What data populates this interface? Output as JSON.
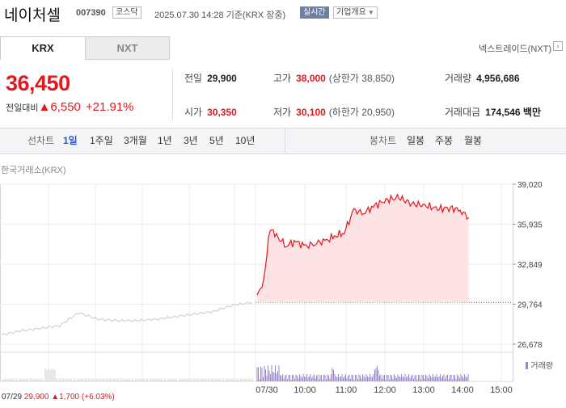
{
  "header": {
    "name": "네이처셀",
    "code": "007390",
    "market": "코스닥",
    "timestamp": "2025.07.30 14:28 기준(KRX 장중)",
    "realtime_label": "실시간",
    "company_info_label": "기업개요"
  },
  "exchange_tabs": [
    {
      "label": "KRX",
      "active": true
    },
    {
      "label": "NXT",
      "active": false
    }
  ],
  "nextrade_link": "넥스트레이드(NXT)",
  "quote": {
    "price": "36,450",
    "change_label": "전일대비",
    "change_arrow": "▲",
    "change": "6,550",
    "change_pct": "+21.91%"
  },
  "stats": {
    "prev_close": {
      "label": "전일",
      "value": "29,900"
    },
    "open": {
      "label": "시가",
      "value": "30,350"
    },
    "high": {
      "label": "고가",
      "value": "38,000",
      "sub_label": "(상한가",
      "sub_value": "38,850)"
    },
    "low": {
      "label": "저가",
      "value": "30,100",
      "sub_label": "(하한가",
      "sub_value": "20,950)"
    },
    "volume": {
      "label": "거래량",
      "value": "4,956,686"
    },
    "amount": {
      "label": "거래대금",
      "value": "174,546",
      "unit": "백만"
    }
  },
  "line_chart_label": "선차트",
  "line_periods": [
    "1일",
    "1주일",
    "3개월",
    "1년",
    "3년",
    "5년",
    "10년"
  ],
  "active_period": "1일",
  "candle_chart_label": "봉차트",
  "candle_periods": [
    "일봉",
    "주봉",
    "월봉"
  ],
  "chart_source": "한국거래소(KRX)",
  "volume_legend": "거래량",
  "prev_day_summary": {
    "date": "07/29",
    "price": "29,900",
    "arrow": "▲",
    "change": "1,700",
    "pct": "(+6.03%)"
  },
  "colors": {
    "up_red": "#e4181e",
    "area_fill": "#fde3e4",
    "prev_line": "#c9c9c9",
    "volume_bar": "#9a86c8",
    "active_blue": "#2d57c4"
  },
  "chart_data": {
    "type": "line",
    "y_ticks": [
      "39,020",
      "35,935",
      "32,849",
      "29,764",
      "26,678"
    ],
    "ylim": [
      26678,
      39020
    ],
    "x_ticks": [
      "07/29",
      "07/30",
      "10:00",
      "11:00",
      "12:00",
      "13:00",
      "14:00",
      "15:00"
    ],
    "baseline": 29900,
    "series": [
      {
        "name": "07/29",
        "x": [
          "09:00",
          "09:30",
          "10:00",
          "10:30",
          "11:00",
          "11:30",
          "12:00",
          "12:30",
          "13:00",
          "13:30",
          "14:00",
          "14:30",
          "15:00",
          "15:30"
        ],
        "values": [
          27400,
          27700,
          27900,
          28100,
          29100,
          28600,
          28500,
          28500,
          28600,
          28800,
          29000,
          29200,
          29700,
          29900
        ]
      },
      {
        "name": "07/30",
        "x": [
          "09:00",
          "09:10",
          "09:20",
          "09:30",
          "09:45",
          "10:00",
          "10:15",
          "10:30",
          "10:45",
          "11:00",
          "11:15",
          "11:30",
          "11:45",
          "12:00",
          "12:20",
          "12:40",
          "13:00",
          "13:20",
          "13:40",
          "14:00",
          "14:15",
          "14:28"
        ],
        "values": [
          30350,
          31600,
          35600,
          35000,
          34300,
          34600,
          34200,
          34500,
          34600,
          35000,
          35300,
          37000,
          36800,
          37300,
          37800,
          38000,
          37500,
          37400,
          37100,
          37200,
          37000,
          36450
        ]
      }
    ],
    "volume_note": "volume bars under price; highest near 09:00-09:30 on 07/30"
  }
}
